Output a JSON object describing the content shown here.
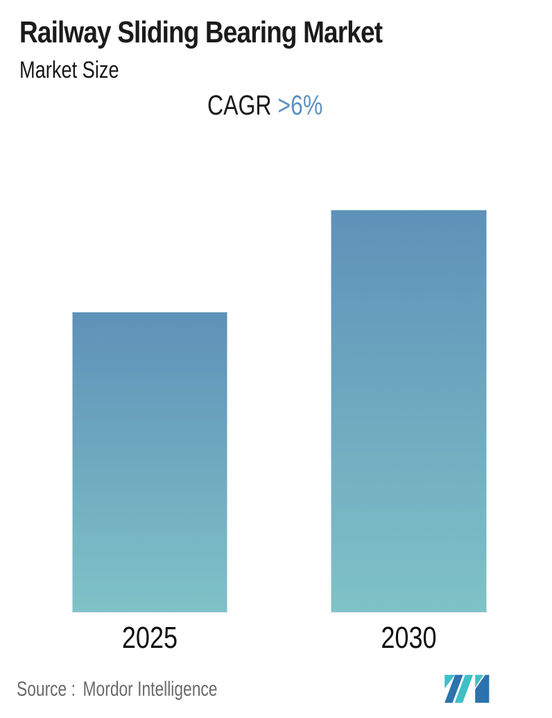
{
  "header": {
    "title": "Railway Sliding Bearing Market",
    "subtitle": "Market Size"
  },
  "cagr": {
    "label": "CAGR",
    "value": ">6%",
    "value_color": "#5d91c2"
  },
  "chart_data": {
    "type": "bar",
    "title": "Railway Sliding Bearing Market",
    "subtitle": "Market Size",
    "annotations": [
      "CAGR >6%"
    ],
    "categories": [
      "2025",
      "2030"
    ],
    "series": [
      {
        "name": "Market Size",
        "values_relative": [
          1.0,
          1.34
        ]
      }
    ],
    "xlabel": "",
    "ylabel": "",
    "value_axis_visible": false,
    "gridlines": false,
    "legend": "none",
    "bar_gradient_top": "#5e91b8",
    "bar_gradient_bottom": "#7fc2c7"
  },
  "footer": {
    "source_label": "Source :",
    "source_value": "Mordor Intelligence",
    "logo": {
      "name": "mordor-intelligence-logo",
      "teal": "#3fbfc6",
      "blue": "#2c72ae"
    }
  }
}
